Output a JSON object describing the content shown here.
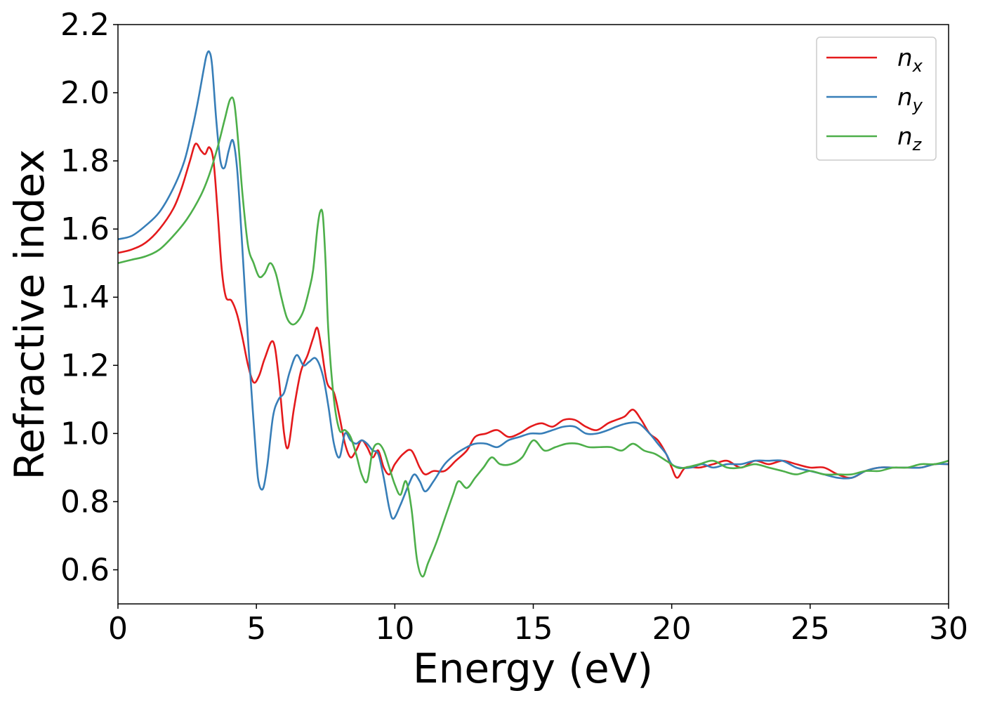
{
  "chart_data": {
    "type": "line",
    "title": "",
    "xlabel": "Energy (eV)",
    "ylabel": "Refractive index",
    "xlim": [
      0,
      30
    ],
    "ylim": [
      0.5,
      2.2
    ],
    "x_ticks": [
      0,
      5,
      10,
      15,
      20,
      25,
      30
    ],
    "x_tick_labels": [
      "0",
      "5",
      "10",
      "15",
      "20",
      "25",
      "30"
    ],
    "y_ticks": [
      0.6,
      0.8,
      1.0,
      1.2,
      1.4,
      1.6,
      1.8,
      2.0,
      2.2
    ],
    "y_tick_labels": [
      "0.6",
      "0.8",
      "1.0",
      "1.2",
      "1.4",
      "1.6",
      "1.8",
      "2.0",
      "2.2"
    ],
    "grid": false,
    "legend_position": "top-right",
    "series": [
      {
        "name": "n",
        "subscript": "x",
        "color": "#e41a1c",
        "x": [
          0,
          0.5,
          1.0,
          1.5,
          2.0,
          2.3,
          2.6,
          2.8,
          3.0,
          3.15,
          3.3,
          3.45,
          3.6,
          3.75,
          3.9,
          4.1,
          4.3,
          4.5,
          4.7,
          4.9,
          5.1,
          5.3,
          5.6,
          5.8,
          6.0,
          6.15,
          6.35,
          6.6,
          6.85,
          7.05,
          7.2,
          7.35,
          7.55,
          7.8,
          8.0,
          8.2,
          8.4,
          8.6,
          8.8,
          9.0,
          9.2,
          9.4,
          9.6,
          9.8,
          10.0,
          10.3,
          10.6,
          10.9,
          11.1,
          11.4,
          11.8,
          12.2,
          12.6,
          12.9,
          13.3,
          13.7,
          14.1,
          14.5,
          14.9,
          15.3,
          15.7,
          16.1,
          16.5,
          16.9,
          17.3,
          17.7,
          18.0,
          18.3,
          18.6,
          18.9,
          19.2,
          19.5,
          19.8,
          20.0,
          20.2,
          20.5,
          21.0,
          21.5,
          22.0,
          22.5,
          23.0,
          23.5,
          24.0,
          24.5,
          25.0,
          25.5,
          26.0,
          26.5,
          27.0,
          27.5,
          28.0,
          28.5,
          29.0,
          29.5,
          30.0
        ],
        "y": [
          1.53,
          1.54,
          1.56,
          1.6,
          1.66,
          1.72,
          1.8,
          1.85,
          1.83,
          1.82,
          1.84,
          1.8,
          1.65,
          1.48,
          1.4,
          1.39,
          1.35,
          1.28,
          1.2,
          1.15,
          1.17,
          1.22,
          1.27,
          1.17,
          1.0,
          0.96,
          1.07,
          1.18,
          1.23,
          1.28,
          1.31,
          1.25,
          1.15,
          1.12,
          1.05,
          0.97,
          0.93,
          0.95,
          0.98,
          0.96,
          0.93,
          0.95,
          0.9,
          0.88,
          0.91,
          0.94,
          0.95,
          0.9,
          0.88,
          0.89,
          0.89,
          0.92,
          0.95,
          0.99,
          1.0,
          1.01,
          0.99,
          1.0,
          1.02,
          1.03,
          1.02,
          1.04,
          1.04,
          1.02,
          1.01,
          1.03,
          1.04,
          1.05,
          1.07,
          1.04,
          1.0,
          0.98,
          0.94,
          0.9,
          0.87,
          0.9,
          0.9,
          0.91,
          0.92,
          0.9,
          0.92,
          0.91,
          0.92,
          0.91,
          0.9,
          0.9,
          0.88,
          0.87,
          0.89,
          0.9,
          0.9,
          0.9,
          0.9,
          0.91,
          0.91
        ]
      },
      {
        "name": "n",
        "subscript": "y",
        "color": "#377eb8",
        "x": [
          0,
          0.5,
          1.0,
          1.5,
          2.0,
          2.4,
          2.7,
          2.9,
          3.1,
          3.2,
          3.3,
          3.4,
          3.55,
          3.7,
          3.85,
          4.0,
          4.15,
          4.3,
          4.45,
          4.6,
          4.8,
          5.0,
          5.1,
          5.25,
          5.4,
          5.6,
          5.8,
          6.0,
          6.2,
          6.45,
          6.7,
          6.9,
          7.15,
          7.4,
          7.6,
          7.8,
          8.0,
          8.2,
          8.4,
          8.6,
          8.8,
          9.0,
          9.2,
          9.4,
          9.6,
          9.8,
          9.95,
          10.2,
          10.5,
          10.7,
          10.9,
          11.1,
          11.4,
          11.8,
          12.2,
          12.6,
          12.9,
          13.3,
          13.7,
          14.1,
          14.5,
          14.9,
          15.3,
          15.7,
          16.1,
          16.5,
          16.9,
          17.3,
          17.7,
          18.0,
          18.4,
          18.8,
          19.2,
          19.5,
          19.8,
          20.0,
          20.3,
          20.7,
          21.1,
          21.5,
          22.0,
          22.5,
          23.0,
          23.5,
          24.0,
          24.5,
          25.0,
          25.5,
          26.0,
          26.5,
          27.0,
          27.5,
          28.0,
          28.5,
          29.0,
          29.5,
          30.0
        ],
        "y": [
          1.57,
          1.58,
          1.61,
          1.65,
          1.72,
          1.8,
          1.9,
          1.98,
          2.07,
          2.11,
          2.12,
          2.08,
          1.92,
          1.8,
          1.78,
          1.83,
          1.86,
          1.78,
          1.6,
          1.4,
          1.15,
          0.92,
          0.85,
          0.84,
          0.91,
          1.05,
          1.1,
          1.12,
          1.18,
          1.23,
          1.2,
          1.21,
          1.22,
          1.17,
          1.08,
          0.97,
          0.93,
          1.0,
          0.98,
          0.97,
          0.98,
          0.97,
          0.95,
          0.94,
          0.87,
          0.78,
          0.75,
          0.79,
          0.85,
          0.88,
          0.86,
          0.83,
          0.86,
          0.91,
          0.94,
          0.96,
          0.97,
          0.97,
          0.96,
          0.98,
          0.99,
          1.0,
          1.0,
          1.01,
          1.02,
          1.02,
          1.0,
          1.0,
          1.01,
          1.02,
          1.03,
          1.03,
          1.0,
          0.97,
          0.94,
          0.91,
          0.9,
          0.9,
          0.91,
          0.9,
          0.91,
          0.91,
          0.92,
          0.92,
          0.92,
          0.9,
          0.89,
          0.88,
          0.87,
          0.87,
          0.89,
          0.9,
          0.9,
          0.9,
          0.9,
          0.91,
          0.91
        ]
      },
      {
        "name": "n",
        "subscript": "z",
        "color": "#4daf4a",
        "x": [
          0,
          0.5,
          1.0,
          1.5,
          2.0,
          2.5,
          3.0,
          3.3,
          3.6,
          3.85,
          4.05,
          4.2,
          4.35,
          4.5,
          4.7,
          4.9,
          5.1,
          5.3,
          5.5,
          5.7,
          5.9,
          6.1,
          6.3,
          6.5,
          6.7,
          6.9,
          7.05,
          7.2,
          7.3,
          7.4,
          7.5,
          7.6,
          7.8,
          8.0,
          8.2,
          8.4,
          8.6,
          8.8,
          9.0,
          9.2,
          9.4,
          9.6,
          9.8,
          10.0,
          10.2,
          10.4,
          10.6,
          10.8,
          11.0,
          11.2,
          11.5,
          11.8,
          12.1,
          12.3,
          12.6,
          12.9,
          13.2,
          13.5,
          13.8,
          14.2,
          14.6,
          15.0,
          15.4,
          15.8,
          16.2,
          16.6,
          17.0,
          17.4,
          17.8,
          18.2,
          18.6,
          19.0,
          19.4,
          19.8,
          20.2,
          20.5,
          21.0,
          21.5,
          22.0,
          22.5,
          23.0,
          23.5,
          24.0,
          24.5,
          25.0,
          25.5,
          26.0,
          26.5,
          27.0,
          27.5,
          28.0,
          28.5,
          29.0,
          29.5,
          30.0
        ],
        "y": [
          1.5,
          1.51,
          1.52,
          1.54,
          1.58,
          1.63,
          1.7,
          1.76,
          1.84,
          1.92,
          1.98,
          1.97,
          1.85,
          1.7,
          1.55,
          1.5,
          1.46,
          1.47,
          1.5,
          1.47,
          1.4,
          1.34,
          1.32,
          1.33,
          1.36,
          1.42,
          1.48,
          1.6,
          1.65,
          1.64,
          1.5,
          1.3,
          1.1,
          1.01,
          1.01,
          0.99,
          0.94,
          0.88,
          0.86,
          0.95,
          0.97,
          0.95,
          0.9,
          0.85,
          0.82,
          0.86,
          0.78,
          0.63,
          0.58,
          0.62,
          0.68,
          0.75,
          0.82,
          0.86,
          0.84,
          0.87,
          0.9,
          0.93,
          0.91,
          0.91,
          0.93,
          0.98,
          0.95,
          0.96,
          0.97,
          0.97,
          0.96,
          0.96,
          0.96,
          0.95,
          0.97,
          0.95,
          0.94,
          0.92,
          0.9,
          0.9,
          0.91,
          0.92,
          0.9,
          0.9,
          0.91,
          0.9,
          0.89,
          0.88,
          0.89,
          0.88,
          0.88,
          0.88,
          0.89,
          0.89,
          0.9,
          0.9,
          0.91,
          0.91,
          0.92
        ]
      }
    ]
  }
}
